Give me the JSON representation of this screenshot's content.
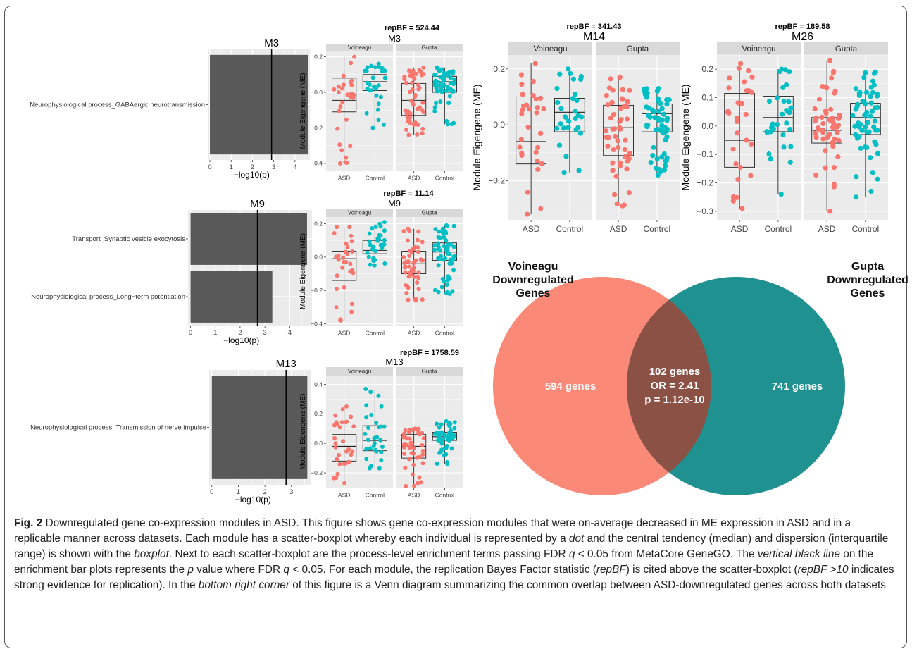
{
  "figure": {
    "colors": {
      "asd": "#F8766D",
      "control": "#00BFC4",
      "panel": "#EBEBEB",
      "strip": "#D9D9D9",
      "bar": "#595959",
      "venn_left": "#FA8977",
      "venn_right": "#1E9190",
      "venn_overlap": "#8C5145"
    },
    "caption": {
      "fig_label": "Fig. 2",
      "t1": " Downregulated gene co-expression modules in ASD. This figure shows gene co-expression modules that were on-average decreased in ME expression in ASD and in a replicable manner across datasets. Each module has a scatter-boxplot whereby each individual is represented by a ",
      "i1": "dot",
      "t2": " and the central tendency (median) and dispersion (interquartile range) is shown with the ",
      "i2": "boxplot",
      "t3": ". Next to each scatter-boxplot are the process-level enrichment terms passing FDR ",
      "i3": "q",
      "t4": " < 0.05 from MetaCore GeneGO. The ",
      "i4": "vertical black line",
      "t5": " on the enrichment bar plots represents the ",
      "i5": "p",
      "t6": " value where FDR ",
      "i6": "q",
      "t7": " < 0.05. For each module, the replication Bayes Factor statistic (",
      "i7": "repBF",
      "t8": ") is cited above the scatter-boxplot (",
      "i8": "repBF >10",
      "t9": " indicates strong evidence for replication). In the ",
      "i9": "bottom right corner",
      "t10": " of this figure is a Venn diagram summarizing the common overlap between ASD-downregulated genes across both datasets"
    }
  },
  "chart_data": [
    {
      "type": "bar",
      "orientation": "horizontal",
      "module": "M3",
      "title": "M3",
      "categories": [
        "Neurophysiological process_GABAergic neurotransmission"
      ],
      "values": [
        4.6
      ],
      "threshold": 2.9,
      "xlabel": "−log10(p)",
      "xlim": [
        -0.1,
        4.7
      ],
      "xticks": [
        0,
        1,
        2,
        3,
        4
      ]
    },
    {
      "type": "scatter-box",
      "module": "M3",
      "title": "M3",
      "repBF": "repBF = 524.44",
      "facets": [
        "Voineagu",
        "Gupta"
      ],
      "groups": [
        "ASD",
        "Control"
      ],
      "ylabel": "Module Eigengene (ME)",
      "ylim": [
        -0.44,
        0.23
      ],
      "yticks": [
        0.2,
        0,
        -0.2,
        -0.4
      ],
      "boxes": {
        "Voineagu": {
          "ASD": {
            "min": -0.4,
            "q1": -0.11,
            "median": -0.045,
            "q3": 0.08,
            "max": 0.2,
            "n": 30
          },
          "Control": {
            "min": -0.2,
            "q1": 0.01,
            "median": 0.06,
            "q3": 0.1,
            "max": 0.16,
            "n": 30
          }
        },
        "Gupta": {
          "ASD": {
            "min": -0.24,
            "q1": -0.13,
            "median": -0.045,
            "q3": 0.05,
            "max": 0.14,
            "n": 50
          },
          "Control": {
            "min": -0.18,
            "q1": 0.0,
            "median": 0.06,
            "q3": 0.09,
            "max": 0.14,
            "n": 60
          }
        }
      }
    },
    {
      "type": "bar",
      "orientation": "horizontal",
      "module": "M9",
      "title": "M9",
      "categories": [
        "Transport_Synaptic vesicle exocytosis",
        "Neurophysiological process_Long−term potentiation"
      ],
      "values": [
        4.7,
        3.3
      ],
      "threshold": 2.7,
      "xlabel": "−log10(p)",
      "xlim": [
        -0.1,
        4.9
      ],
      "xticks": [
        0,
        1,
        2,
        3,
        4
      ]
    },
    {
      "type": "scatter-box",
      "module": "M9",
      "title": "M9",
      "repBF": "repBF = 11.14",
      "facets": [
        "Voineagu",
        "Gupta"
      ],
      "groups": [
        "ASD",
        "Control"
      ],
      "ylabel": "Module Eigengene (ME)",
      "ylim": [
        -0.41,
        0.24
      ],
      "yticks": [
        0.2,
        0,
        -0.2,
        -0.4
      ],
      "boxes": {
        "Voineagu": {
          "ASD": {
            "min": -0.38,
            "q1": -0.14,
            "median": -0.01,
            "q3": 0.035,
            "max": 0.18,
            "n": 30
          },
          "Control": {
            "min": -0.05,
            "q1": 0.02,
            "median": 0.04,
            "q3": 0.1,
            "max": 0.21,
            "n": 30
          }
        },
        "Gupta": {
          "ASD": {
            "min": -0.26,
            "q1": -0.1,
            "median": -0.04,
            "q3": 0.035,
            "max": 0.17,
            "n": 50
          },
          "Control": {
            "min": -0.22,
            "q1": -0.02,
            "median": 0.03,
            "q3": 0.085,
            "max": 0.19,
            "n": 60
          }
        }
      }
    },
    {
      "type": "bar",
      "orientation": "horizontal",
      "module": "M13",
      "title": "M13",
      "categories": [
        "Neurophysiological process_Transmission of nerve impulse"
      ],
      "values": [
        3.6
      ],
      "threshold": 2.8,
      "xlabel": "−log10(p)",
      "xlim": [
        -0.1,
        3.75
      ],
      "xticks": [
        0,
        1,
        2,
        3
      ]
    },
    {
      "type": "scatter-box",
      "module": "M13",
      "title": "M13",
      "repBF": "repBF = 1758.59",
      "facets": [
        "Voineagu",
        "Gupta"
      ],
      "groups": [
        "ASD",
        "Control"
      ],
      "ylabel": "Module Eigengene (ME)",
      "ylim": [
        -0.3,
        0.46
      ],
      "yticks": [
        0.4,
        0.2,
        0,
        -0.2
      ],
      "boxes": {
        "Voineagu": {
          "ASD": {
            "min": -0.27,
            "q1": -0.12,
            "median": -0.02,
            "q3": 0.06,
            "max": 0.25,
            "n": 30
          },
          "Control": {
            "min": -0.17,
            "q1": -0.05,
            "median": 0.02,
            "q3": 0.12,
            "max": 0.37,
            "n": 30
          }
        },
        "Gupta": {
          "ASD": {
            "min": -0.29,
            "q1": -0.1,
            "median": -0.02,
            "q3": 0.06,
            "max": 0.1,
            "n": 50
          },
          "Control": {
            "min": -0.14,
            "q1": 0.02,
            "median": 0.045,
            "q3": 0.075,
            "max": 0.15,
            "n": 60
          }
        }
      }
    },
    {
      "type": "scatter-box",
      "module": "M14",
      "title": "M14",
      "repBF": "repBF = 341.43",
      "facets": [
        "Voineagu",
        "Gupta"
      ],
      "groups": [
        "ASD",
        "Control"
      ],
      "ylabel": "Module Eigengene (ME)",
      "ylim": [
        -0.34,
        0.25
      ],
      "yticks": [
        0.2,
        0,
        -0.2
      ],
      "boxes": {
        "Voineagu": {
          "ASD": {
            "min": -0.32,
            "q1": -0.14,
            "median": -0.06,
            "q3": 0.1,
            "max": 0.22,
            "n": 30
          },
          "Control": {
            "min": -0.17,
            "q1": -0.025,
            "median": 0.045,
            "q3": 0.095,
            "max": 0.2,
            "n": 30
          }
        },
        "Gupta": {
          "ASD": {
            "min": -0.29,
            "q1": -0.11,
            "median": -0.01,
            "q3": 0.07,
            "max": 0.17,
            "n": 50
          },
          "Control": {
            "min": -0.18,
            "q1": -0.025,
            "median": 0.04,
            "q3": 0.075,
            "max": 0.13,
            "n": 60
          }
        }
      }
    },
    {
      "type": "scatter-box",
      "module": "M26",
      "title": "M26",
      "repBF": "repBF = 189.58",
      "facets": [
        "Voineagu",
        "Gupta"
      ],
      "groups": [
        "ASD",
        "Control"
      ],
      "ylabel": "Module Eigengene (ME)",
      "ylim": [
        -0.33,
        0.25
      ],
      "yticks": [
        0.2,
        0.1,
        0,
        -0.1,
        -0.2,
        -0.3
      ],
      "boxes": {
        "Voineagu": {
          "ASD": {
            "min": -0.29,
            "q1": -0.145,
            "median": -0.05,
            "q3": 0.115,
            "max": 0.22,
            "n": 30
          },
          "Control": {
            "min": -0.24,
            "q1": -0.02,
            "median": 0.03,
            "q3": 0.105,
            "max": 0.2,
            "n": 30
          }
        },
        "Gupta": {
          "ASD": {
            "min": -0.3,
            "q1": -0.06,
            "median": -0.015,
            "q3": 0.03,
            "max": 0.23,
            "n": 50
          },
          "Control": {
            "min": -0.25,
            "q1": -0.03,
            "median": 0.03,
            "q3": 0.08,
            "max": 0.19,
            "n": 60
          }
        }
      }
    },
    {
      "type": "venn",
      "left_label": [
        "Voineagu",
        "Downregulated",
        "Genes"
      ],
      "right_label": [
        "Gupta",
        "Downregulated",
        "Genes"
      ],
      "left_only": "594 genes",
      "right_only": "741 genes",
      "overlap": [
        "102 genes",
        "OR = 2.41",
        "p = 1.12e-10"
      ]
    }
  ]
}
